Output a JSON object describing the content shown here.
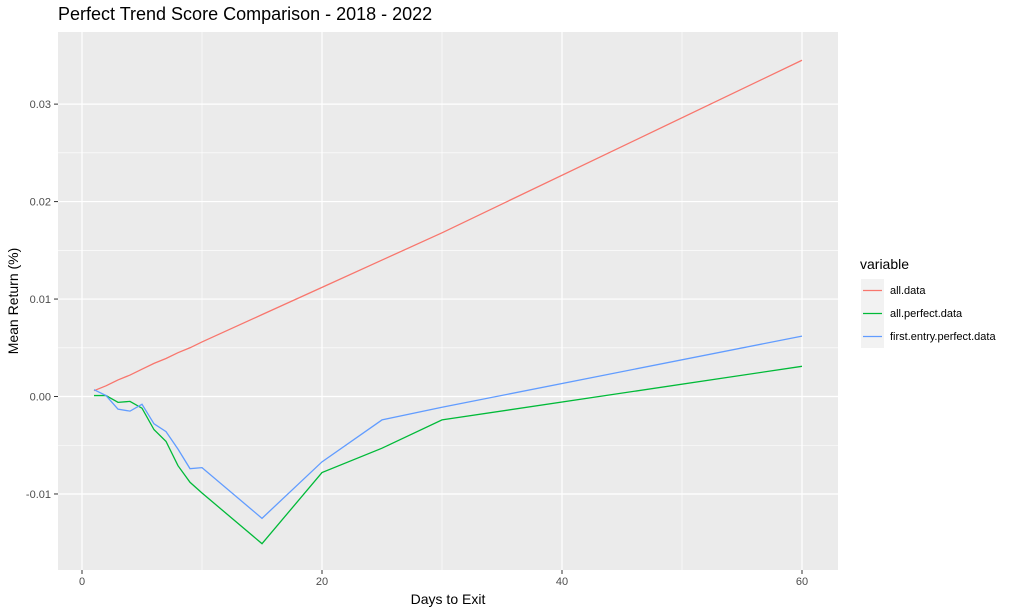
{
  "chart_data": {
    "type": "line",
    "title": "Perfect Trend Score Comparison - 2018 - 2022",
    "xlabel": "Days to Exit",
    "ylabel": "Mean Return (%)",
    "xlim": [
      -2,
      63
    ],
    "ylim": [
      -0.0178,
      0.0374
    ],
    "x_ticks": [
      0,
      20,
      40,
      60
    ],
    "x_tick_labels": [
      "0",
      "20",
      "40",
      "60"
    ],
    "y_ticks": [
      -0.01,
      0,
      0.01,
      0.02,
      0.03
    ],
    "y_tick_labels": [
      "-0.01",
      "0.00",
      "0.01",
      "0.02",
      "0.03"
    ],
    "grid": true,
    "legend": {
      "title": "variable",
      "position": "right"
    },
    "series": [
      {
        "name": "all.data",
        "color": "#F8766D",
        "points": [
          [
            1,
            0.0006
          ],
          [
            2,
            0.0011
          ],
          [
            3,
            0.0017
          ],
          [
            4,
            0.0022
          ],
          [
            5,
            0.0028
          ],
          [
            6,
            0.0034
          ],
          [
            7,
            0.0039
          ],
          [
            8,
            0.0045
          ],
          [
            9,
            0.005
          ],
          [
            10,
            0.0056
          ],
          [
            15,
            0.0084
          ],
          [
            20,
            0.0112
          ],
          [
            25,
            0.014
          ],
          [
            30,
            0.0168
          ],
          [
            60,
            0.0345
          ]
        ]
      },
      {
        "name": "all.perfect.data",
        "color": "#00BA38",
        "points": [
          [
            1,
            0.0001
          ],
          [
            2,
            0.0001
          ],
          [
            3,
            -0.0006
          ],
          [
            4,
            -0.0005
          ],
          [
            5,
            -0.0012
          ],
          [
            6,
            -0.0034
          ],
          [
            7,
            -0.0046
          ],
          [
            8,
            -0.0071
          ],
          [
            9,
            -0.0088
          ],
          [
            10,
            -0.0099
          ],
          [
            15,
            -0.0151
          ],
          [
            20,
            -0.0078
          ],
          [
            25,
            -0.0053
          ],
          [
            30,
            -0.0024
          ],
          [
            60,
            0.0031
          ]
        ]
      },
      {
        "name": "first.entry.perfect.data",
        "color": "#619CFF",
        "points": [
          [
            1,
            0.0007
          ],
          [
            2,
            0.0001
          ],
          [
            3,
            -0.0013
          ],
          [
            4,
            -0.0015
          ],
          [
            5,
            -0.0008
          ],
          [
            6,
            -0.0028
          ],
          [
            7,
            -0.0036
          ],
          [
            8,
            -0.0054
          ],
          [
            9,
            -0.0074
          ],
          [
            10,
            -0.0073
          ],
          [
            15,
            -0.0125
          ],
          [
            20,
            -0.0067
          ],
          [
            25,
            -0.0024
          ],
          [
            30,
            -0.0011
          ],
          [
            60,
            0.0062
          ]
        ]
      }
    ]
  }
}
